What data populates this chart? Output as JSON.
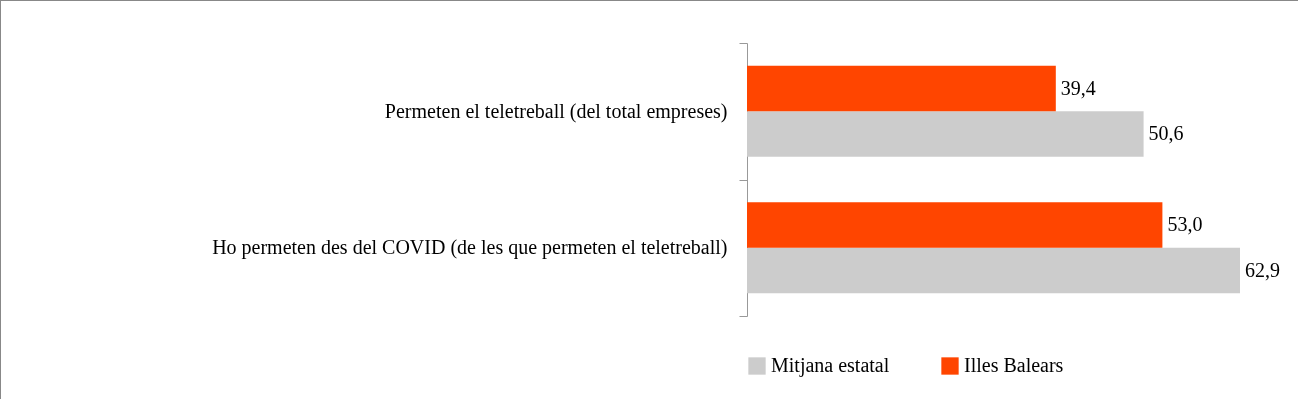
{
  "chart_data": {
    "type": "bar",
    "orientation": "horizontal",
    "categories": [
      "Permeten el teletreball (del total empreses)",
      "Ho permeten des del COVID (de les que permeten el teletreball)"
    ],
    "series": [
      {
        "name": "Mitjana estatal",
        "color": "#cccccc",
        "values": [
          50.6,
          62.9
        ],
        "value_labels": [
          "50,6",
          "62,9"
        ]
      },
      {
        "name": "Illes Balears",
        "color": "#ff4500",
        "values": [
          39.4,
          53.0
        ],
        "value_labels": [
          "39,4",
          "53,0"
        ]
      }
    ],
    "tick_labels": "y",
    "grid": false,
    "legend": "bottom"
  }
}
